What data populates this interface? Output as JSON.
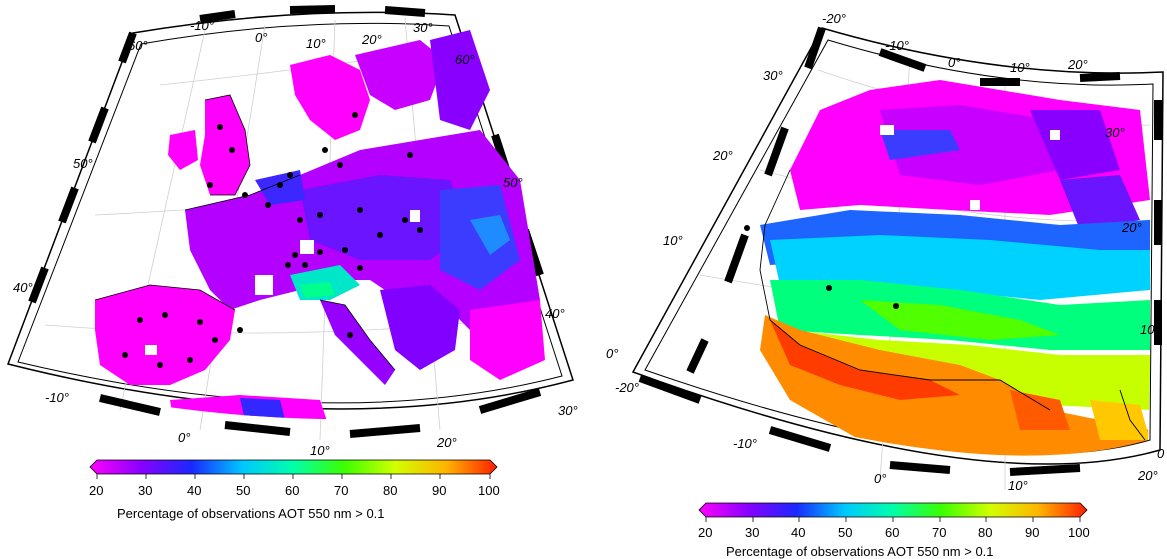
{
  "panels": [
    {
      "id": "europe",
      "lon_labels_top": [
        "-10°",
        "0°",
        "10°",
        "20°",
        "30°"
      ],
      "lon_labels_bottom": [
        "-10°",
        "0°",
        "10°",
        "20°",
        "30°"
      ],
      "lat_labels_left": [
        "60°",
        "50°",
        "40°"
      ],
      "lat_labels_right": [
        "60°",
        "50°",
        "40°"
      ],
      "colorbar": {
        "ticks": [
          "20",
          "30",
          "40",
          "50",
          "60",
          "70",
          "80",
          "90",
          "100"
        ],
        "title": "Percentage of observations AOT 550 nm > 0.1"
      }
    },
    {
      "id": "west-africa",
      "lon_labels_top": [
        "-20°",
        "-10°",
        "0°",
        "10°",
        "20°"
      ],
      "lon_labels_bottom": [
        "-20°",
        "-10°",
        "0°",
        "10°",
        "20°"
      ],
      "lat_labels_left": [
        "30°",
        "20°",
        "10°",
        "0°"
      ],
      "lat_labels_right": [
        "30°",
        "20°",
        "10°",
        "0"
      ],
      "colorbar": {
        "ticks": [
          "20",
          "30",
          "40",
          "50",
          "60",
          "70",
          "80",
          "90",
          "100"
        ],
        "title": "Percentage of observations AOT 550 nm > 0.1"
      }
    }
  ],
  "colors": {
    "p20": "#ff00ff",
    "p30": "#8a00ff",
    "p40": "#1a28ff",
    "p50": "#00c8ff",
    "p60": "#00ffaa",
    "p70": "#3cff00",
    "p80": "#d2ff00",
    "p90": "#ffb400",
    "p100": "#ff1e00"
  }
}
